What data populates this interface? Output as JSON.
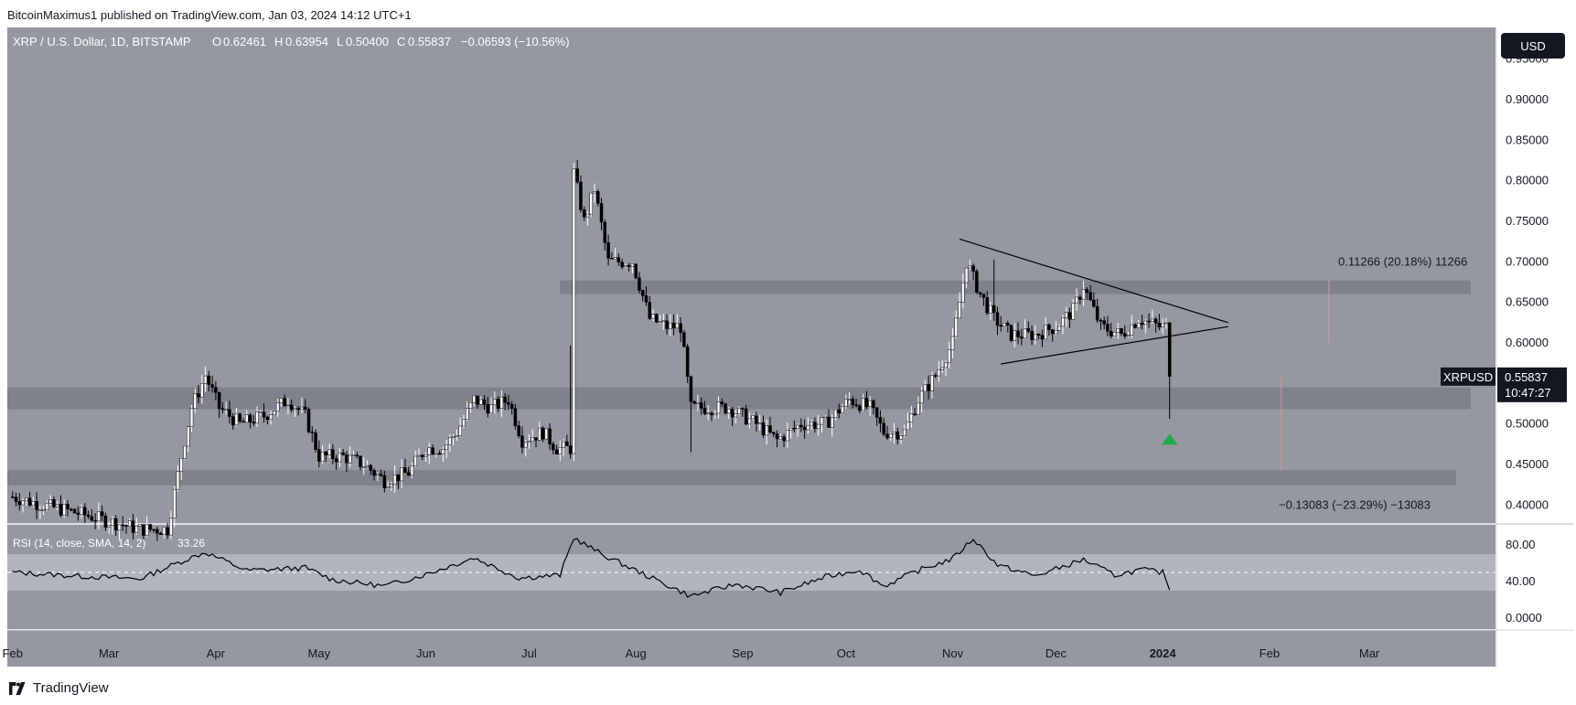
{
  "header": {
    "published": "BitcoinMaximus1 published on TradingView.com, Jan 03, 2024 14:12 UTC+1"
  },
  "footer": {
    "brand": "TradingView",
    "logo_icon": "tradingview-logo-icon"
  },
  "chart_data": {
    "type": "candlestick",
    "title": "XRP / U.S. Dollar, 1D, BITSTAMP",
    "ohlc": {
      "o_label": "O",
      "o": "0.62461",
      "h_label": "H",
      "h": "0.63954",
      "l_label": "L",
      "l": "0.50400",
      "c_label": "C",
      "c": "0.55837",
      "change": "−0.06593 (−10.56%)"
    },
    "currency_button": "USD",
    "price_axis": {
      "ticks": [
        "0.95000",
        "0.90000",
        "0.85000",
        "0.80000",
        "0.75000",
        "0.70000",
        "0.65000",
        "0.60000",
        "0.50000",
        "0.45000",
        "0.40000"
      ],
      "ylim": [
        0.38,
        0.98
      ]
    },
    "time_axis": {
      "ticks": [
        "Feb",
        "Mar",
        "Apr",
        "May",
        "Jun",
        "Jul",
        "Aug",
        "Sep",
        "Oct",
        "Nov",
        "Dec",
        "2024",
        "Feb",
        "Mar"
      ],
      "bold_tick": "2024"
    },
    "series": [
      {
        "name": "XRPUSD",
        "points": [
          [
            "2023-02-01",
            0.41
          ],
          [
            "2023-02-10",
            0.4
          ],
          [
            "2023-02-20",
            0.39
          ],
          [
            "2023-03-01",
            0.38
          ],
          [
            "2023-03-10",
            0.37
          ],
          [
            "2023-03-18",
            0.37
          ],
          [
            "2023-03-22",
            0.46
          ],
          [
            "2023-03-25",
            0.52
          ],
          [
            "2023-03-29",
            0.56
          ],
          [
            "2023-04-02",
            0.52
          ],
          [
            "2023-04-08",
            0.5
          ],
          [
            "2023-04-15",
            0.51
          ],
          [
            "2023-04-22",
            0.53
          ],
          [
            "2023-04-27",
            0.51
          ],
          [
            "2023-05-01",
            0.46
          ],
          [
            "2023-05-08",
            0.46
          ],
          [
            "2023-05-14",
            0.45
          ],
          [
            "2023-05-20",
            0.43
          ],
          [
            "2023-05-27",
            0.44
          ],
          [
            "2023-06-01",
            0.47
          ],
          [
            "2023-06-06",
            0.47
          ],
          [
            "2023-06-10",
            0.49
          ],
          [
            "2023-06-15",
            0.53
          ],
          [
            "2023-06-20",
            0.52
          ],
          [
            "2023-06-25",
            0.53
          ],
          [
            "2023-06-29",
            0.48
          ],
          [
            "2023-07-05",
            0.49
          ],
          [
            "2023-07-09",
            0.47
          ],
          [
            "2023-07-13",
            0.47
          ],
          [
            "2023-07-14",
            0.81
          ],
          [
            "2023-07-17",
            0.75
          ],
          [
            "2023-07-20",
            0.79
          ],
          [
            "2023-07-24",
            0.7
          ],
          [
            "2023-07-31",
            0.7
          ],
          [
            "2023-08-05",
            0.63
          ],
          [
            "2023-08-10",
            0.62
          ],
          [
            "2023-08-14",
            0.62
          ],
          [
            "2023-08-17",
            0.52
          ],
          [
            "2023-08-20",
            0.52
          ],
          [
            "2023-08-28",
            0.52
          ],
          [
            "2023-09-05",
            0.5
          ],
          [
            "2023-09-11",
            0.48
          ],
          [
            "2023-09-18",
            0.5
          ],
          [
            "2023-09-25",
            0.5
          ],
          [
            "2023-10-02",
            0.53
          ],
          [
            "2023-10-08",
            0.52
          ],
          [
            "2023-10-12",
            0.49
          ],
          [
            "2023-10-18",
            0.49
          ],
          [
            "2023-10-22",
            0.53
          ],
          [
            "2023-10-27",
            0.56
          ],
          [
            "2023-11-01",
            0.6
          ],
          [
            "2023-11-05",
            0.7
          ],
          [
            "2023-11-09",
            0.66
          ],
          [
            "2023-11-13",
            0.63
          ],
          [
            "2023-11-18",
            0.61
          ],
          [
            "2023-11-25",
            0.61
          ],
          [
            "2023-12-01",
            0.62
          ],
          [
            "2023-12-06",
            0.64
          ],
          [
            "2023-12-09",
            0.67
          ],
          [
            "2023-12-14",
            0.62
          ],
          [
            "2023-12-20",
            0.61
          ],
          [
            "2023-12-25",
            0.63
          ],
          [
            "2023-12-31",
            0.62
          ],
          [
            "2024-01-02",
            0.62
          ],
          [
            "2024-01-03",
            0.56
          ]
        ]
      }
    ],
    "annotations": {
      "last_price_label": "XRPUSD",
      "last_price": "0.55837",
      "countdown": "10:47:27",
      "measure_up": "0.11266 (20.18%) 11266",
      "measure_down": "−0.13083 (−23.29%) −13083",
      "zones": [
        {
          "from": 0.66,
          "to": 0.677
        },
        {
          "from": 0.518,
          "to": 0.545
        },
        {
          "from": 0.424,
          "to": 0.443
        }
      ],
      "triangle": {
        "upper": [
          [
            "2023-11-03",
            0.728
          ],
          [
            "2024-01-20",
            0.625
          ]
        ],
        "lower": [
          [
            "2023-11-15",
            0.574
          ],
          [
            "2024-01-20",
            0.62
          ]
        ]
      },
      "signal_arrow": {
        "date": "2024-01-03",
        "price": 0.48,
        "color": "#22ab4a"
      }
    },
    "rsi": {
      "label": "RSI (14, close, SMA, 14, 2)",
      "value": "33.26",
      "ticks": [
        "80.00",
        "40.00",
        "0.0000"
      ],
      "ylim": [
        -10,
        100
      ],
      "band": [
        30,
        70
      ],
      "points": [
        [
          "2023-02-01",
          50
        ],
        [
          "2023-02-20",
          46
        ],
        [
          "2023-03-10",
          43
        ],
        [
          "2023-03-22",
          62
        ],
        [
          "2023-03-29",
          72
        ],
        [
          "2023-04-10",
          52
        ],
        [
          "2023-04-27",
          55
        ],
        [
          "2023-05-05",
          42
        ],
        [
          "2023-05-20",
          35
        ],
        [
          "2023-06-01",
          48
        ],
        [
          "2023-06-15",
          66
        ],
        [
          "2023-06-28",
          44
        ],
        [
          "2023-07-10",
          47
        ],
        [
          "2023-07-14",
          88
        ],
        [
          "2023-07-22",
          70
        ],
        [
          "2023-08-05",
          45
        ],
        [
          "2023-08-17",
          24
        ],
        [
          "2023-08-30",
          37
        ],
        [
          "2023-09-12",
          28
        ],
        [
          "2023-09-25",
          45
        ],
        [
          "2023-10-05",
          53
        ],
        [
          "2023-10-12",
          35
        ],
        [
          "2023-10-22",
          52
        ],
        [
          "2023-11-01",
          65
        ],
        [
          "2023-11-07",
          87
        ],
        [
          "2023-11-14",
          58
        ],
        [
          "2023-11-25",
          46
        ],
        [
          "2023-12-09",
          64
        ],
        [
          "2023-12-18",
          47
        ],
        [
          "2023-12-26",
          53
        ],
        [
          "2024-01-01",
          50
        ],
        [
          "2024-01-03",
          33
        ]
      ]
    },
    "colors": {
      "background": "#9598a1",
      "zone": "#787b86",
      "up": "#ffffff",
      "down": "#000000",
      "rsi_band": "#b2b5be",
      "axis_bg": "#ffffff",
      "text": "#131722"
    }
  }
}
